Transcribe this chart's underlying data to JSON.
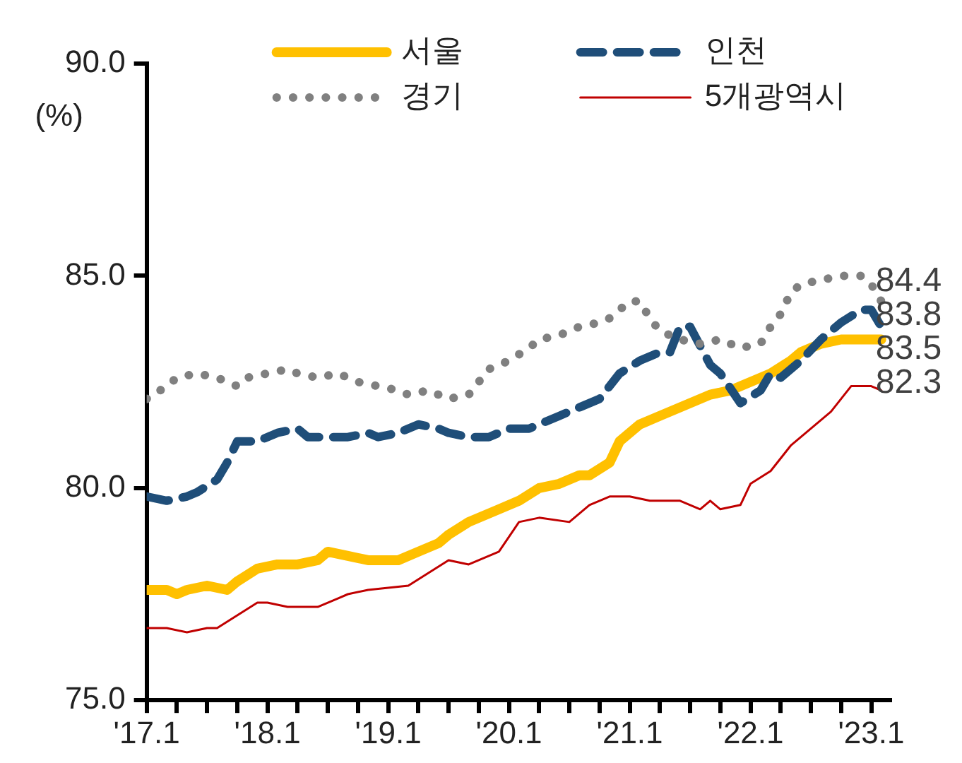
{
  "chart_data": {
    "type": "line",
    "ylabel": "(%)",
    "legend": "top",
    "grid": false,
    "marker": "none",
    "xlim": [
      "2017-01",
      "2023-03"
    ],
    "xticks": [
      {
        "value": "2017-01",
        "label": "'17.1"
      },
      {
        "value": "2017-04",
        "label": null
      },
      {
        "value": "2017-07",
        "label": null
      },
      {
        "value": "2017-10",
        "label": null
      },
      {
        "value": "2018-01",
        "label": "'18.1"
      },
      {
        "value": "2018-04",
        "label": null
      },
      {
        "value": "2018-07",
        "label": null
      },
      {
        "value": "2018-10",
        "label": null
      },
      {
        "value": "2019-01",
        "label": "'19.1"
      },
      {
        "value": "2019-04",
        "label": null
      },
      {
        "value": "2019-07",
        "label": null
      },
      {
        "value": "2019-10",
        "label": null
      },
      {
        "value": "2020-01",
        "label": "'20.1"
      },
      {
        "value": "2020-04",
        "label": null
      },
      {
        "value": "2020-07",
        "label": null
      },
      {
        "value": "2020-10",
        "label": null
      },
      {
        "value": "2021-01",
        "label": "'21.1"
      },
      {
        "value": "2021-04",
        "label": null
      },
      {
        "value": "2021-07",
        "label": null
      },
      {
        "value": "2021-10",
        "label": null
      },
      {
        "value": "2022-01",
        "label": "'22.1"
      },
      {
        "value": "2022-04",
        "label": null
      },
      {
        "value": "2022-07",
        "label": null
      },
      {
        "value": "2022-10",
        "label": null
      },
      {
        "value": "2023-01",
        "label": "'23.1"
      }
    ],
    "ylim": [
      75,
      90
    ],
    "yticks": [
      {
        "value": 75,
        "label": "75.0"
      },
      {
        "value": 80,
        "label": "80.0"
      },
      {
        "value": 85,
        "label": "85.0"
      },
      {
        "value": 90,
        "label": "90.0"
      }
    ],
    "series": [
      {
        "name": "서울",
        "color": "#ffc000",
        "line_style": "solid",
        "x": [
          "2017-01",
          "2017-03",
          "2017-04",
          "2017-05",
          "2017-07",
          "2017-09",
          "2017-10",
          "2017-12",
          "2018-02",
          "2018-04",
          "2018-06",
          "2018-07",
          "2018-09",
          "2018-11",
          "2018-12",
          "2019-02",
          "2019-04",
          "2019-06",
          "2019-07",
          "2019-09",
          "2019-10",
          "2019-12",
          "2020-02",
          "2020-04",
          "2020-06",
          "2020-08",
          "2020-09",
          "2020-11",
          "2020-12",
          "2021-02",
          "2021-04",
          "2021-06",
          "2021-08",
          "2021-09",
          "2021-11",
          "2022-01",
          "2022-03",
          "2022-05",
          "2022-06",
          "2022-08",
          "2022-10",
          "2022-12",
          "2023-02"
        ],
        "values": [
          77.6,
          77.6,
          77.5,
          77.6,
          77.7,
          77.6,
          77.8,
          78.1,
          78.2,
          78.2,
          78.3,
          78.5,
          78.4,
          78.3,
          78.3,
          78.3,
          78.5,
          78.7,
          78.9,
          79.2,
          79.3,
          79.5,
          79.7,
          80.0,
          80.1,
          80.3,
          80.3,
          80.6,
          81.1,
          81.5,
          81.7,
          81.9,
          82.1,
          82.2,
          82.3,
          82.5,
          82.7,
          83.0,
          83.2,
          83.4,
          83.5,
          83.5,
          83.5
        ],
        "value_labels": [
          null,
          null,
          null,
          null,
          null,
          null,
          null,
          null,
          null,
          null,
          null,
          null,
          null,
          null,
          null,
          null,
          null,
          null,
          null,
          null,
          null,
          null,
          null,
          null,
          null,
          null,
          null,
          null,
          null,
          null,
          null,
          null,
          null,
          null,
          null,
          null,
          null,
          null,
          null,
          null,
          null,
          null,
          "83.5"
        ]
      },
      {
        "name": "인천",
        "color": "#1f4e79",
        "line_style": "dashed",
        "x": [
          "2017-01",
          "2017-03",
          "2017-05",
          "2017-06",
          "2017-08",
          "2017-09",
          "2017-10",
          "2017-12",
          "2018-02",
          "2018-04",
          "2018-05",
          "2018-07",
          "2018-09",
          "2018-11",
          "2018-12",
          "2019-02",
          "2019-04",
          "2019-06",
          "2019-07",
          "2019-09",
          "2019-11",
          "2020-01",
          "2020-03",
          "2020-04",
          "2020-06",
          "2020-08",
          "2020-10",
          "2020-11",
          "2020-12",
          "2021-02",
          "2021-04",
          "2021-05",
          "2021-06",
          "2021-07",
          "2021-09",
          "2021-10",
          "2021-12",
          "2022-02",
          "2022-03",
          "2022-04",
          "2022-06",
          "2022-08",
          "2022-10",
          "2022-12",
          "2023-01",
          "2023-02"
        ],
        "values": [
          79.8,
          79.7,
          79.8,
          79.9,
          80.2,
          80.6,
          81.1,
          81.1,
          81.3,
          81.4,
          81.2,
          81.2,
          81.2,
          81.3,
          81.2,
          81.3,
          81.5,
          81.4,
          81.3,
          81.2,
          81.2,
          81.4,
          81.4,
          81.5,
          81.7,
          81.9,
          82.1,
          82.4,
          82.7,
          83.0,
          83.2,
          83.2,
          83.8,
          83.8,
          82.9,
          82.7,
          82.0,
          82.3,
          82.7,
          82.6,
          83.0,
          83.5,
          83.9,
          84.2,
          84.2,
          83.8
        ],
        "value_labels": [
          null,
          null,
          null,
          null,
          null,
          null,
          null,
          null,
          null,
          null,
          null,
          null,
          null,
          null,
          null,
          null,
          null,
          null,
          null,
          null,
          null,
          null,
          null,
          null,
          null,
          null,
          null,
          null,
          null,
          null,
          null,
          null,
          null,
          null,
          null,
          null,
          null,
          null,
          null,
          null,
          null,
          null,
          null,
          null,
          null,
          "83.8"
        ]
      },
      {
        "name": "경기",
        "color": "#808080",
        "line_style": "dotted",
        "x": [
          "2017-01",
          "2017-03",
          "2017-04",
          "2017-06",
          "2017-08",
          "2017-10",
          "2017-11",
          "2018-01",
          "2018-03",
          "2018-04",
          "2018-06",
          "2018-08",
          "2018-10",
          "2018-12",
          "2019-02",
          "2019-03",
          "2019-05",
          "2019-07",
          "2019-09",
          "2019-10",
          "2019-11",
          "2020-01",
          "2020-03",
          "2020-04",
          "2020-06",
          "2020-08",
          "2020-10",
          "2020-11",
          "2021-01",
          "2021-02",
          "2021-03",
          "2021-04",
          "2021-06",
          "2021-08",
          "2021-10",
          "2021-12",
          "2022-02",
          "2022-03",
          "2022-04",
          "2022-05",
          "2022-06",
          "2022-08",
          "2022-10",
          "2022-12",
          "2023-01",
          "2023-02"
        ],
        "values": [
          82.1,
          82.4,
          82.6,
          82.7,
          82.6,
          82.4,
          82.6,
          82.7,
          82.8,
          82.7,
          82.6,
          82.7,
          82.5,
          82.4,
          82.3,
          82.2,
          82.3,
          82.1,
          82.2,
          82.5,
          82.8,
          83.0,
          83.3,
          83.5,
          83.6,
          83.8,
          83.9,
          84.0,
          84.4,
          84.4,
          84.0,
          83.7,
          83.5,
          83.4,
          83.5,
          83.3,
          83.4,
          83.8,
          84.1,
          84.6,
          84.8,
          84.9,
          85.0,
          85.0,
          84.8,
          84.4
        ],
        "value_labels": [
          null,
          null,
          null,
          null,
          null,
          null,
          null,
          null,
          null,
          null,
          null,
          null,
          null,
          null,
          null,
          null,
          null,
          null,
          null,
          null,
          null,
          null,
          null,
          null,
          null,
          null,
          null,
          null,
          null,
          null,
          null,
          null,
          null,
          null,
          null,
          null,
          null,
          null,
          null,
          null,
          null,
          null,
          null,
          null,
          null,
          "84.4"
        ]
      },
      {
        "name": "5개광역시",
        "color": "#c00000",
        "line_style": "solid",
        "x": [
          "2017-01",
          "2017-03",
          "2017-05",
          "2017-07",
          "2017-08",
          "2017-10",
          "2017-12",
          "2018-01",
          "2018-03",
          "2018-06",
          "2018-08",
          "2018-09",
          "2018-11",
          "2019-03",
          "2019-05",
          "2019-07",
          "2019-09",
          "2019-10",
          "2019-12",
          "2020-02",
          "2020-04",
          "2020-07",
          "2020-09",
          "2020-11",
          "2021-01",
          "2021-03",
          "2021-06",
          "2021-08",
          "2021-09",
          "2021-10",
          "2021-12",
          "2022-01",
          "2022-03",
          "2022-05",
          "2022-07",
          "2022-09",
          "2022-11",
          "2023-01",
          "2023-02"
        ],
        "values": [
          76.7,
          76.7,
          76.6,
          76.7,
          76.7,
          77.0,
          77.3,
          77.3,
          77.2,
          77.2,
          77.4,
          77.5,
          77.6,
          77.7,
          78.0,
          78.3,
          78.2,
          78.3,
          78.5,
          79.2,
          79.3,
          79.2,
          79.6,
          79.8,
          79.8,
          79.7,
          79.7,
          79.5,
          79.7,
          79.5,
          79.6,
          80.1,
          80.4,
          81.0,
          81.4,
          81.8,
          82.4,
          82.4,
          82.3
        ],
        "value_labels": [
          null,
          null,
          null,
          null,
          null,
          null,
          null,
          null,
          null,
          null,
          null,
          null,
          null,
          null,
          null,
          null,
          null,
          null,
          null,
          null,
          null,
          null,
          null,
          null,
          null,
          null,
          null,
          null,
          null,
          null,
          null,
          null,
          null,
          null,
          null,
          null,
          null,
          null,
          "82.3"
        ]
      }
    ]
  }
}
